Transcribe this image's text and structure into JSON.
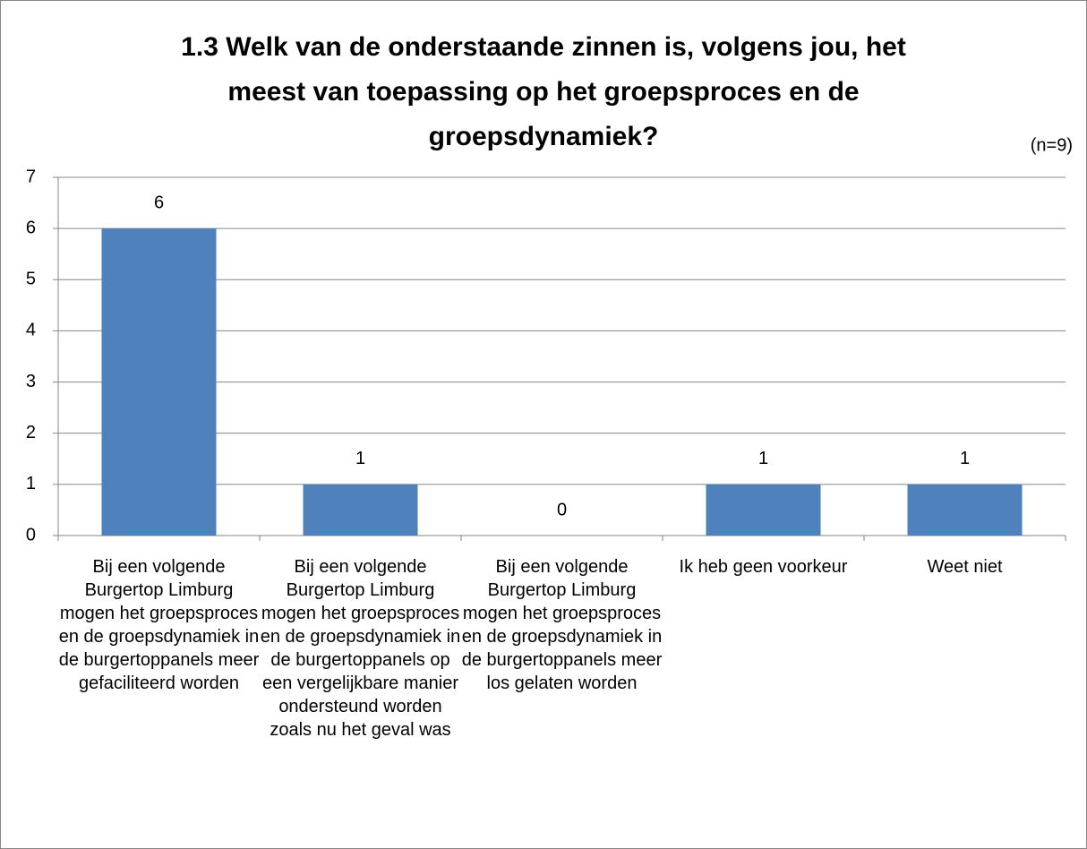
{
  "chart_data": {
    "type": "bar",
    "title": "1.3 Welk van de onderstaande zinnen is, volgens jou, het meest van toepassing op het groepsproces en de groepsdynamiek?",
    "annotation": "(n=9)",
    "categories": [
      "Bij een volgende Burgertop Limburg mogen het groepsproces en de groepsdynamiek in de burgertoppanels meer gefaciliteerd worden",
      "Bij een volgende Burgertop Limburg mogen het groepsproces en de groepsdynamiek in de burgertoppanels op een vergelijkbare manier ondersteund worden zoals nu het geval was",
      "Bij een volgende Burgertop Limburg mogen het groepsproces en de groepsdynamiek in de burgertoppanels meer los gelaten worden",
      "Ik heb geen voorkeur",
      "Weet niet"
    ],
    "values": [
      6,
      1,
      0,
      1,
      1
    ],
    "color": "#4f81bd",
    "ylim": [
      0,
      7
    ],
    "yticks": [
      0,
      1,
      2,
      3,
      4,
      5,
      6,
      7
    ],
    "grid": true
  }
}
